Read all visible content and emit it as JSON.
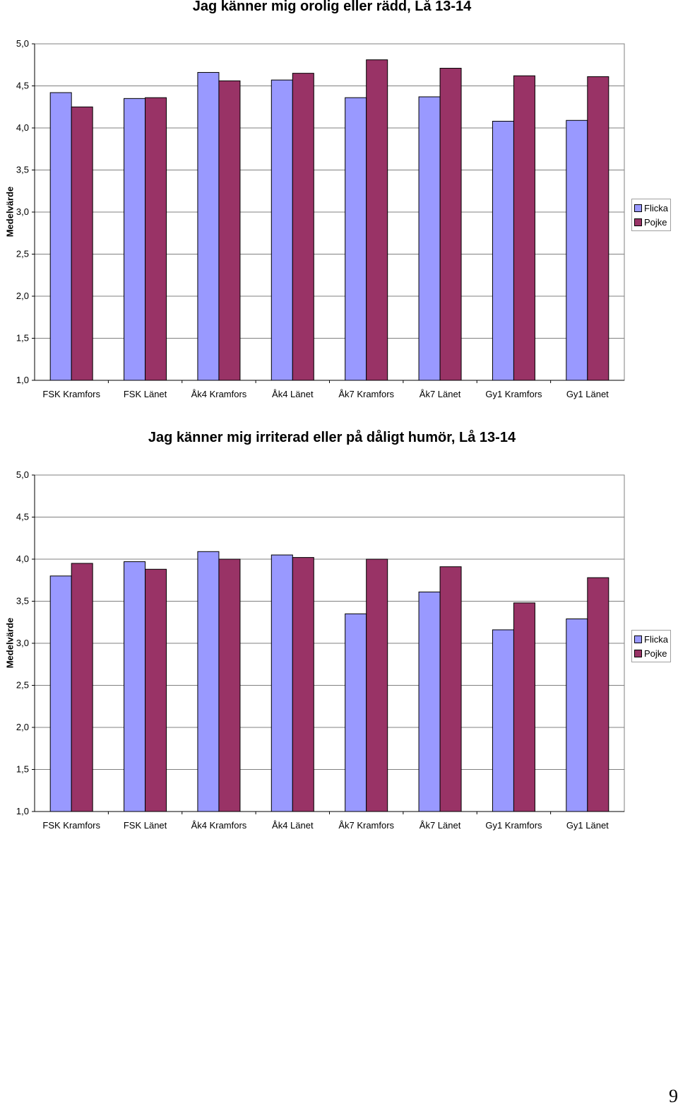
{
  "page_number": "9",
  "chart_data": [
    {
      "type": "bar",
      "title": "Jag känner mig orolig eller rädd, Lå 13-14",
      "xlabel": "",
      "ylabel": "Medelvärde",
      "ylim": [
        1.0,
        5.0
      ],
      "yticks": [
        "1,0",
        "1,5",
        "2,0",
        "2,5",
        "3,0",
        "3,5",
        "4,0",
        "4,5",
        "5,0"
      ],
      "grid": true,
      "legend": "right",
      "categories": [
        "FSK Kramfors",
        "FSK Länet",
        "Åk4 Kramfors",
        "Åk4 Länet",
        "Åk7 Kramfors",
        "Åk7 Länet",
        "Gy1 Kramfors",
        "Gy1 Länet"
      ],
      "series": [
        {
          "name": "Flicka",
          "color": "#9999ff",
          "values": [
            4.42,
            4.35,
            4.66,
            4.57,
            4.36,
            4.37,
            4.08,
            4.09
          ]
        },
        {
          "name": "Pojke",
          "color": "#993366",
          "values": [
            4.25,
            4.36,
            4.56,
            4.65,
            4.81,
            4.71,
            4.62,
            4.61
          ]
        }
      ]
    },
    {
      "type": "bar",
      "title": "Jag känner mig irriterad eller på dåligt humör, Lå 13-14",
      "xlabel": "",
      "ylabel": "Medelvärde",
      "ylim": [
        1.0,
        5.0
      ],
      "yticks": [
        "1,0",
        "1,5",
        "2,0",
        "2,5",
        "3,0",
        "3,5",
        "4,0",
        "4,5",
        "5,0"
      ],
      "grid": true,
      "legend": "right",
      "categories": [
        "FSK Kramfors",
        "FSK Länet",
        "Åk4 Kramfors",
        "Åk4 Länet",
        "Åk7 Kramfors",
        "Åk7 Länet",
        "Gy1 Kramfors",
        "Gy1 Länet"
      ],
      "series": [
        {
          "name": "Flicka",
          "color": "#9999ff",
          "values": [
            3.8,
            3.97,
            4.09,
            4.05,
            3.35,
            3.61,
            3.16,
            3.29
          ]
        },
        {
          "name": "Pojke",
          "color": "#993366",
          "values": [
            3.95,
            3.88,
            4.0,
            4.02,
            4.0,
            3.91,
            3.48,
            3.78
          ]
        }
      ]
    }
  ]
}
